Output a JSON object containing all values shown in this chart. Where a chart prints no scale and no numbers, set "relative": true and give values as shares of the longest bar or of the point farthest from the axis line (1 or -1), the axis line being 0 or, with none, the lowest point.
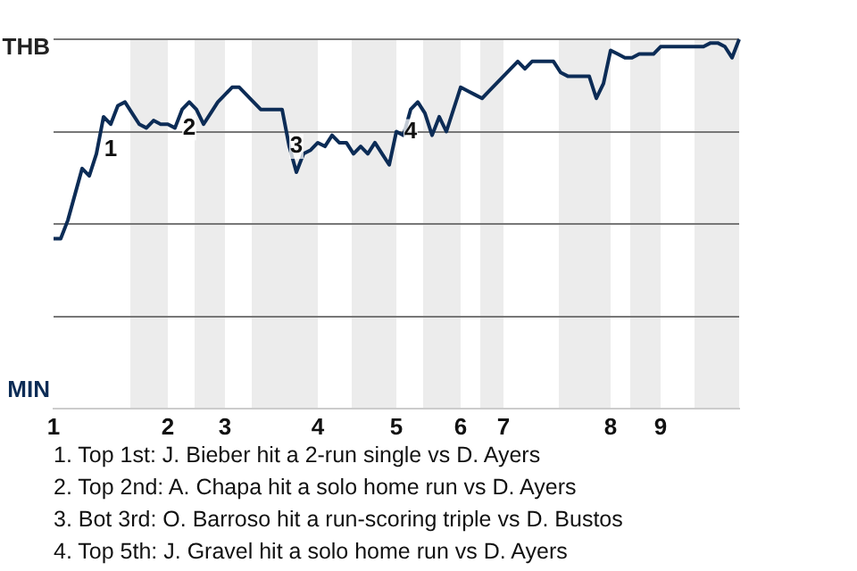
{
  "chart_data": {
    "type": "line",
    "relative": true,
    "categories": [
      "1",
      null,
      null,
      null,
      null,
      null,
      null,
      null,
      null,
      null,
      null,
      null,
      null,
      null,
      null,
      null,
      "2",
      null,
      null,
      null,
      null,
      null,
      null,
      null,
      "3",
      null,
      null,
      null,
      null,
      null,
      null,
      null,
      null,
      null,
      null,
      null,
      null,
      "4",
      null,
      null,
      null,
      null,
      null,
      null,
      null,
      null,
      null,
      null,
      "5",
      null,
      null,
      null,
      null,
      null,
      null,
      null,
      null,
      "6",
      null,
      null,
      null,
      null,
      null,
      "7",
      null,
      null,
      null,
      null,
      null,
      null,
      null,
      null,
      null,
      null,
      null,
      null,
      null,
      null,
      "8",
      null,
      null,
      null,
      null,
      null,
      null,
      "9",
      null,
      null,
      null,
      null,
      null,
      null,
      null,
      null,
      null,
      null,
      null
    ],
    "grid": "y",
    "legend": false,
    "marker": "none",
    "line_style": "solid",
    "series": [
      {
        "color": "#0c2c56",
        "values": [
          0.46,
          0.46,
          0.51,
          0.58,
          0.65,
          0.63,
          0.69,
          0.79,
          0.77,
          0.82,
          0.83,
          0.8,
          0.77,
          0.76,
          0.78,
          0.77,
          0.77,
          0.76,
          0.81,
          0.83,
          0.81,
          0.77,
          0.8,
          0.83,
          0.85,
          0.87,
          0.87,
          0.85,
          0.83,
          0.81,
          0.81,
          0.81,
          0.81,
          0.71,
          0.64,
          0.69,
          0.7,
          0.72,
          0.71,
          0.74,
          0.72,
          0.72,
          0.69,
          0.71,
          0.69,
          0.72,
          0.69,
          0.66,
          0.75,
          0.74,
          0.81,
          0.83,
          0.8,
          0.74,
          0.79,
          0.75,
          0.81,
          0.87,
          0.86,
          0.85,
          0.84,
          0.86,
          0.88,
          0.9,
          0.92,
          0.94,
          0.92,
          0.94,
          0.94,
          0.94,
          0.94,
          0.91,
          0.9,
          0.9,
          0.9,
          0.9,
          0.84,
          0.88,
          0.97,
          0.96,
          0.95,
          0.95,
          0.96,
          0.96,
          0.96,
          0.98,
          0.98,
          0.98,
          0.98,
          0.98,
          0.98,
          0.98,
          0.99,
          0.99,
          0.98,
          0.95,
          1
        ]
      }
    ],
    "annotations": [
      "THB",
      "MIN",
      "1",
      "2",
      "3",
      "4",
      "1. Top 1st: J. Bieber hit a 2-run single vs D. Ayers",
      "2. Top 2nd: A. Chapa hit a solo home run vs D. Ayers",
      "3. Bot 3rd: O. Barroso hit a run-scoring triple vs D. Bustos",
      "4. Top 5th: J. Gravel hit a solo home run vs D. Ayers"
    ]
  }
}
